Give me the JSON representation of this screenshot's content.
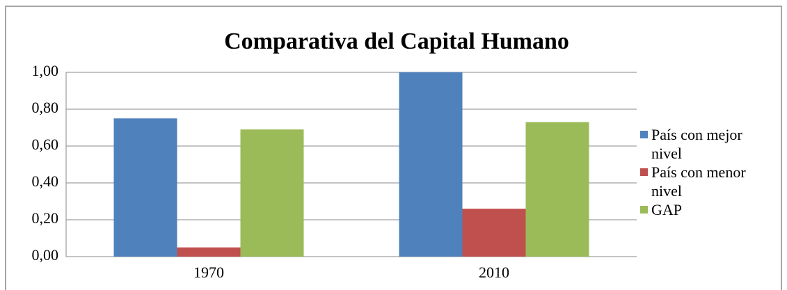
{
  "chart_data": {
    "type": "bar",
    "title": "Comparativa del Capital Humano",
    "categories": [
      "1970",
      "2010"
    ],
    "series": [
      {
        "name": "País con mejor nivel",
        "color": "#4f81bd",
        "values": [
          0.75,
          1.0
        ]
      },
      {
        "name": "País con menor nivel",
        "color": "#c0504d",
        "values": [
          0.05,
          0.26
        ]
      },
      {
        "name": "GAP",
        "color": "#9bbb59",
        "values": [
          0.69,
          0.73
        ]
      }
    ],
    "ylim": [
      0,
      1
    ],
    "yticks": [
      {
        "value": 0,
        "label": "0,00"
      },
      {
        "value": 0.2,
        "label": "0,20"
      },
      {
        "value": 0.4,
        "label": "0,40"
      },
      {
        "value": 0.6,
        "label": "0,60"
      },
      {
        "value": 0.8,
        "label": "0,80"
      },
      {
        "value": 1,
        "label": "1,00"
      }
    ],
    "grid": true,
    "legend": "right"
  }
}
